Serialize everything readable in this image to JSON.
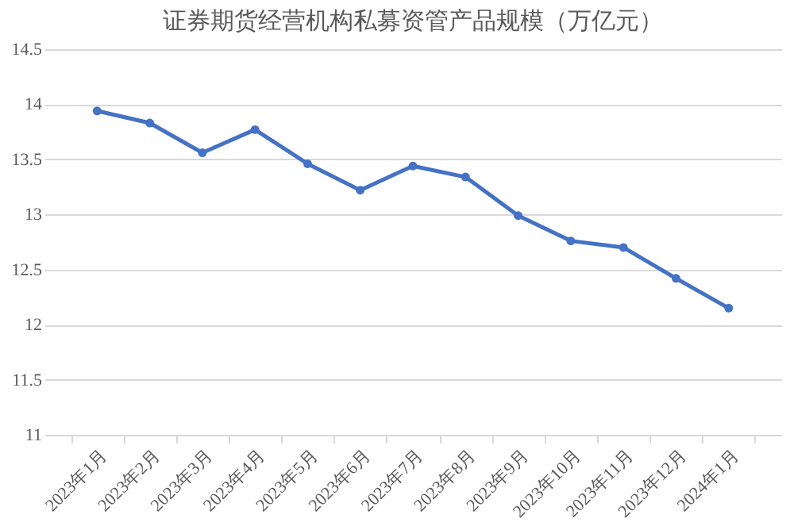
{
  "chart_data": {
    "type": "line",
    "title": "证券期货经营机构私募资管产品规模（万亿元）",
    "categories": [
      "2023年1月",
      "2023年2月",
      "2023年3月",
      "2023年4月",
      "2023年5月",
      "2023年6月",
      "2023年7月",
      "2023年8月",
      "2023年9月",
      "2023年10月",
      "2023年11月",
      "2023年12月",
      "2024年1月"
    ],
    "series": [
      {
        "color": "#4472c4",
        "values": [
          13.94,
          13.83,
          13.56,
          13.77,
          13.46,
          13.22,
          13.44,
          13.34,
          12.99,
          12.76,
          12.7,
          12.42,
          12.15
        ]
      }
    ],
    "ylim": [
      11,
      14.5
    ],
    "yticks": [
      11,
      11.5,
      12,
      12.5,
      13,
      13.5,
      14,
      14.5
    ],
    "grid": "y",
    "marker": "circle",
    "line_style": "solid"
  }
}
